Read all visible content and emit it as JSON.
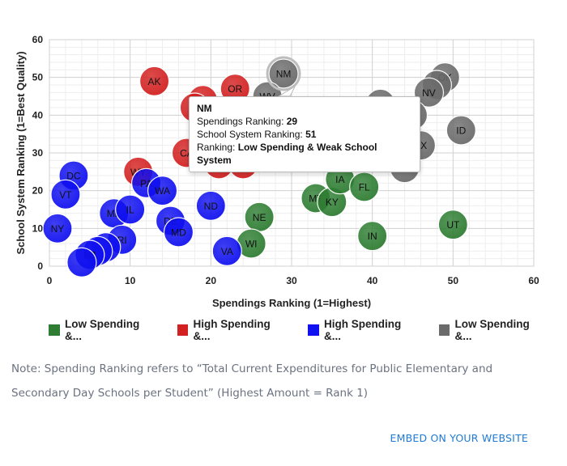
{
  "chart_data": {
    "type": "scatter",
    "xlabel": "Spendings Ranking (1=Highest)",
    "ylabel": "School System Ranking (1=Best Quality)",
    "xlim": [
      0,
      60
    ],
    "ylim": [
      0,
      60
    ],
    "x_ticks": [
      0,
      10,
      20,
      30,
      40,
      50,
      60
    ],
    "y_ticks": [
      0,
      10,
      20,
      30,
      40,
      50,
      60
    ],
    "grid": true,
    "legend_position": "bottom-left",
    "series": [
      {
        "name": "Low Spending &...",
        "color": "#2e7d32",
        "points": [
          {
            "label": "NE",
            "x": 26,
            "y": 13
          },
          {
            "label": "WI",
            "x": 25,
            "y": 6
          },
          {
            "label": "MT",
            "x": 33,
            "y": 18
          },
          {
            "label": "KY",
            "x": 35,
            "y": 17
          },
          {
            "label": "IA",
            "x": 36,
            "y": 23
          },
          {
            "label": "FL",
            "x": 39,
            "y": 21
          },
          {
            "label": "IN",
            "x": 40,
            "y": 8
          },
          {
            "label": "UT",
            "x": 50,
            "y": 11
          }
        ]
      },
      {
        "name": "High Spending &...",
        "color": "#d32020",
        "points": [
          {
            "label": "AK",
            "x": 13,
            "y": 49
          },
          {
            "label": "",
            "x": 19,
            "y": 44
          },
          {
            "label": "",
            "x": 18,
            "y": 42
          },
          {
            "label": "OR",
            "x": 23,
            "y": 47
          },
          {
            "label": "CA",
            "x": 17,
            "y": 30
          },
          {
            "label": "CO",
            "x": 21,
            "y": 27
          },
          {
            "label": "MN",
            "x": 24,
            "y": 27
          },
          {
            "label": "WY",
            "x": 11,
            "y": 25
          }
        ]
      },
      {
        "name": "High Spending &...",
        "color": "#1010f0",
        "points": [
          {
            "label": "DC",
            "x": 3,
            "y": 24
          },
          {
            "label": "VT",
            "x": 2,
            "y": 19
          },
          {
            "label": "NY",
            "x": 1,
            "y": 10
          },
          {
            "label": "PA",
            "x": 12,
            "y": 22
          },
          {
            "label": "WA",
            "x": 14,
            "y": 20
          },
          {
            "label": "ME",
            "x": 8,
            "y": 14
          },
          {
            "label": "IL",
            "x": 10,
            "y": 15
          },
          {
            "label": "DE",
            "x": 15,
            "y": 12
          },
          {
            "label": "MD",
            "x": 16,
            "y": 9
          },
          {
            "label": "ND",
            "x": 20,
            "y": 16
          },
          {
            "label": "RI",
            "x": 9,
            "y": 7
          },
          {
            "label": "",
            "x": 7,
            "y": 5
          },
          {
            "label": "",
            "x": 6,
            "y": 4
          },
          {
            "label": "NJ",
            "x": 5,
            "y": 3
          },
          {
            "label": "",
            "x": 4,
            "y": 1
          },
          {
            "label": "VA",
            "x": 22,
            "y": 4
          }
        ]
      },
      {
        "name": "Low Spending &...",
        "color": "#6b6b6b",
        "points": [
          {
            "label": "NM",
            "x": 29,
            "y": 51
          },
          {
            "label": "WV",
            "x": 27,
            "y": 45
          },
          {
            "label": "OK",
            "x": 49,
            "y": 50
          },
          {
            "label": "",
            "x": 48,
            "y": 48
          },
          {
            "label": "NV",
            "x": 47,
            "y": 46
          },
          {
            "label": "",
            "x": 41,
            "y": 43
          },
          {
            "label": "",
            "x": 45,
            "y": 40
          },
          {
            "label": "ID",
            "x": 51,
            "y": 36
          },
          {
            "label": "TX",
            "x": 46,
            "y": 32
          },
          {
            "label": "",
            "x": 37,
            "y": 31
          },
          {
            "label": "",
            "x": 43,
            "y": 29
          },
          {
            "label": "TN",
            "x": 44,
            "y": 26
          }
        ]
      }
    ]
  },
  "tooltip": {
    "state": "NM",
    "spend_label": "Spendings Ranking: ",
    "spend_value": "29",
    "school_label": "School System Ranking: ",
    "school_value": "51",
    "ranking_label": "Ranking: ",
    "ranking_value": "Low Spending & Weak School System"
  },
  "legend": [
    {
      "label": "Low Spending &...",
      "color": "#2e7d32"
    },
    {
      "label": "High Spending &...",
      "color": "#d32020"
    },
    {
      "label": "High Spending &...",
      "color": "#1010f0"
    },
    {
      "label": "Low Spending &...",
      "color": "#6b6b6b"
    }
  ],
  "note": "Note: Spending Ranking refers to “Total Current Expenditures for Public Elementary and Secondary Day Schools per Student” (Highest Amount = Rank 1)",
  "embed_link": "EMBED ON YOUR WEBSITE"
}
